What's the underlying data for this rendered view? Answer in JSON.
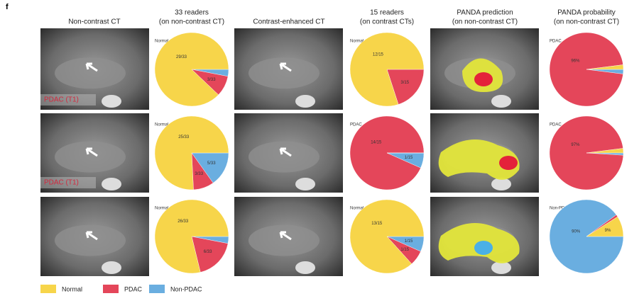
{
  "figure": {
    "panel": "f",
    "columns": [
      [
        "Non-contrast CT"
      ],
      [
        "33 readers",
        "(on non-contrast CT)"
      ],
      [
        "Contrast-enhanced CT"
      ],
      [
        "15 readers",
        "(on contrast CTs)"
      ],
      [
        "PANDA prediction",
        "(on non-contrast CT)"
      ],
      [
        "PANDA probability",
        "(on non-contrast CT)"
      ]
    ],
    "image_labels": [
      "PDAC (T1)",
      "PDAC (T1)"
    ],
    "legend": [
      {
        "name": "Normal",
        "color": "#f7d54a"
      },
      {
        "name": "PDAC",
        "color": "#e4465a"
      },
      {
        "name": "Non-PDAC",
        "color": "#6aaee0"
      }
    ]
  },
  "chart_data": [
    {
      "type": "pie",
      "title": "Normal",
      "values": [
        29,
        3,
        1
      ],
      "value_labels": [
        "29/33",
        "3/33",
        null
      ]
    },
    {
      "type": "pie",
      "title": "Normal",
      "values": [
        12,
        3,
        0
      ],
      "value_labels": [
        "12/15",
        "3/15",
        null
      ]
    },
    {
      "type": "pie",
      "title": "PDAC",
      "values": [
        2,
        96,
        2
      ],
      "value_labels": [
        null,
        "96%",
        null
      ]
    },
    {
      "type": "pie",
      "title": "Normal",
      "values": [
        25,
        3,
        5
      ],
      "value_labels": [
        "25/33",
        "3/33",
        "5/33"
      ]
    },
    {
      "type": "pie",
      "title": "PDAC",
      "values": [
        0,
        14,
        1
      ],
      "value_labels": [
        null,
        "14/15",
        "1/15"
      ]
    },
    {
      "type": "pie",
      "title": "PDAC",
      "values": [
        2,
        97,
        1
      ],
      "value_labels": [
        null,
        "97%",
        null
      ]
    },
    {
      "type": "pie",
      "title": "Normal",
      "values": [
        26,
        6,
        1
      ],
      "value_labels": [
        "26/33",
        "6/33",
        null
      ]
    },
    {
      "type": "pie",
      "title": "Normal",
      "values": [
        13,
        1,
        1
      ],
      "value_labels": [
        "13/15",
        "1/15",
        "1/15"
      ]
    },
    {
      "type": "pie",
      "title": "Non-PDAC",
      "values": [
        9,
        1,
        90
      ],
      "value_labels": [
        "9%",
        null,
        "90%"
      ]
    }
  ]
}
